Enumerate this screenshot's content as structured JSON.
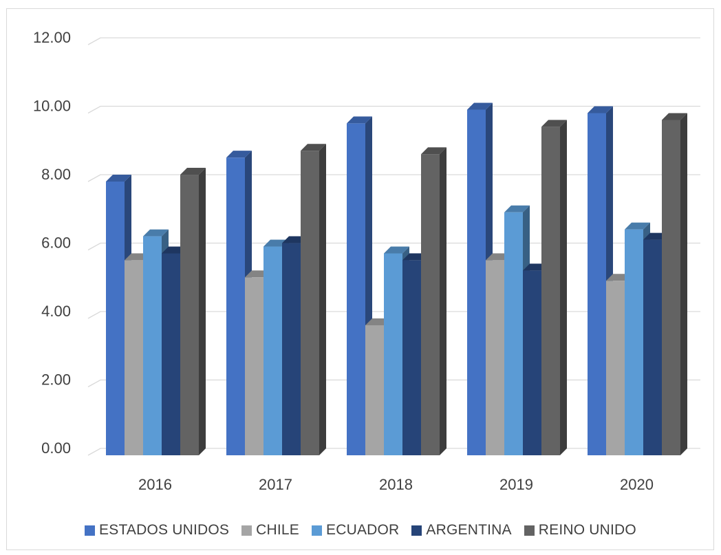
{
  "chart_data": {
    "type": "bar",
    "title": "",
    "xlabel": "",
    "ylabel": "",
    "categories": [
      "2016",
      "2017",
      "2018",
      "2019",
      "2020"
    ],
    "ylim": [
      0,
      12
    ],
    "y_ticks": [
      "0.00",
      "2.00",
      "4.00",
      "6.00",
      "8.00",
      "10.00",
      "12.00"
    ],
    "grid": true,
    "legend_position": "bottom",
    "series": [
      {
        "name": "ESTADOS UNIDOS",
        "color": "#4472C4",
        "values": [
          8.0,
          8.7,
          9.7,
          10.1,
          10.0
        ]
      },
      {
        "name": "CHILE",
        "color": "#A5A5A5",
        "values": [
          5.7,
          5.2,
          3.8,
          5.7,
          5.1
        ]
      },
      {
        "name": "ECUADOR",
        "color": "#5B9BD5",
        "values": [
          6.4,
          6.1,
          5.9,
          7.1,
          6.6
        ]
      },
      {
        "name": "ARGENTINA",
        "color": "#264478",
        "values": [
          5.9,
          6.2,
          5.7,
          5.4,
          6.3
        ]
      },
      {
        "name": "REINO UNIDO",
        "color": "#636363",
        "values": [
          8.2,
          8.9,
          8.8,
          9.6,
          9.8
        ]
      }
    ]
  }
}
